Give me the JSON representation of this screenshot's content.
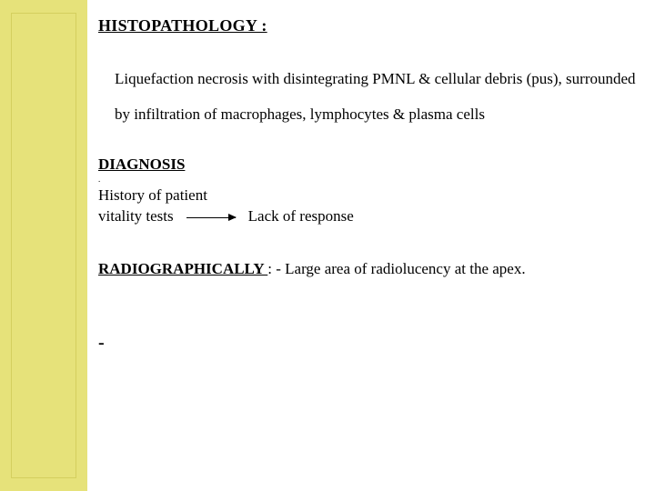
{
  "colors": {
    "band_bg": "#e6e27a",
    "band_border": "#d4cf5e",
    "band_top": "#bdb95a",
    "page_bg": "#ffffff",
    "text": "#000000"
  },
  "histopathology": {
    "heading": "HISTOPATHOLOGY :",
    "body": "Liquefaction necrosis with disintegrating PMNL & cellular debris (pus), surrounded by infiltration of macrophages, lymphocytes & plasma cells"
  },
  "diagnosis": {
    "heading": "DIAGNOSIS",
    "line1": "History of patient",
    "line2_left": "vitality tests",
    "line2_right": "Lack of response"
  },
  "radiographically": {
    "label": "RADIOGRAPHICALLY ",
    "rest": ": - Large area of radiolucency at the apex."
  },
  "trailing_dash": "-"
}
